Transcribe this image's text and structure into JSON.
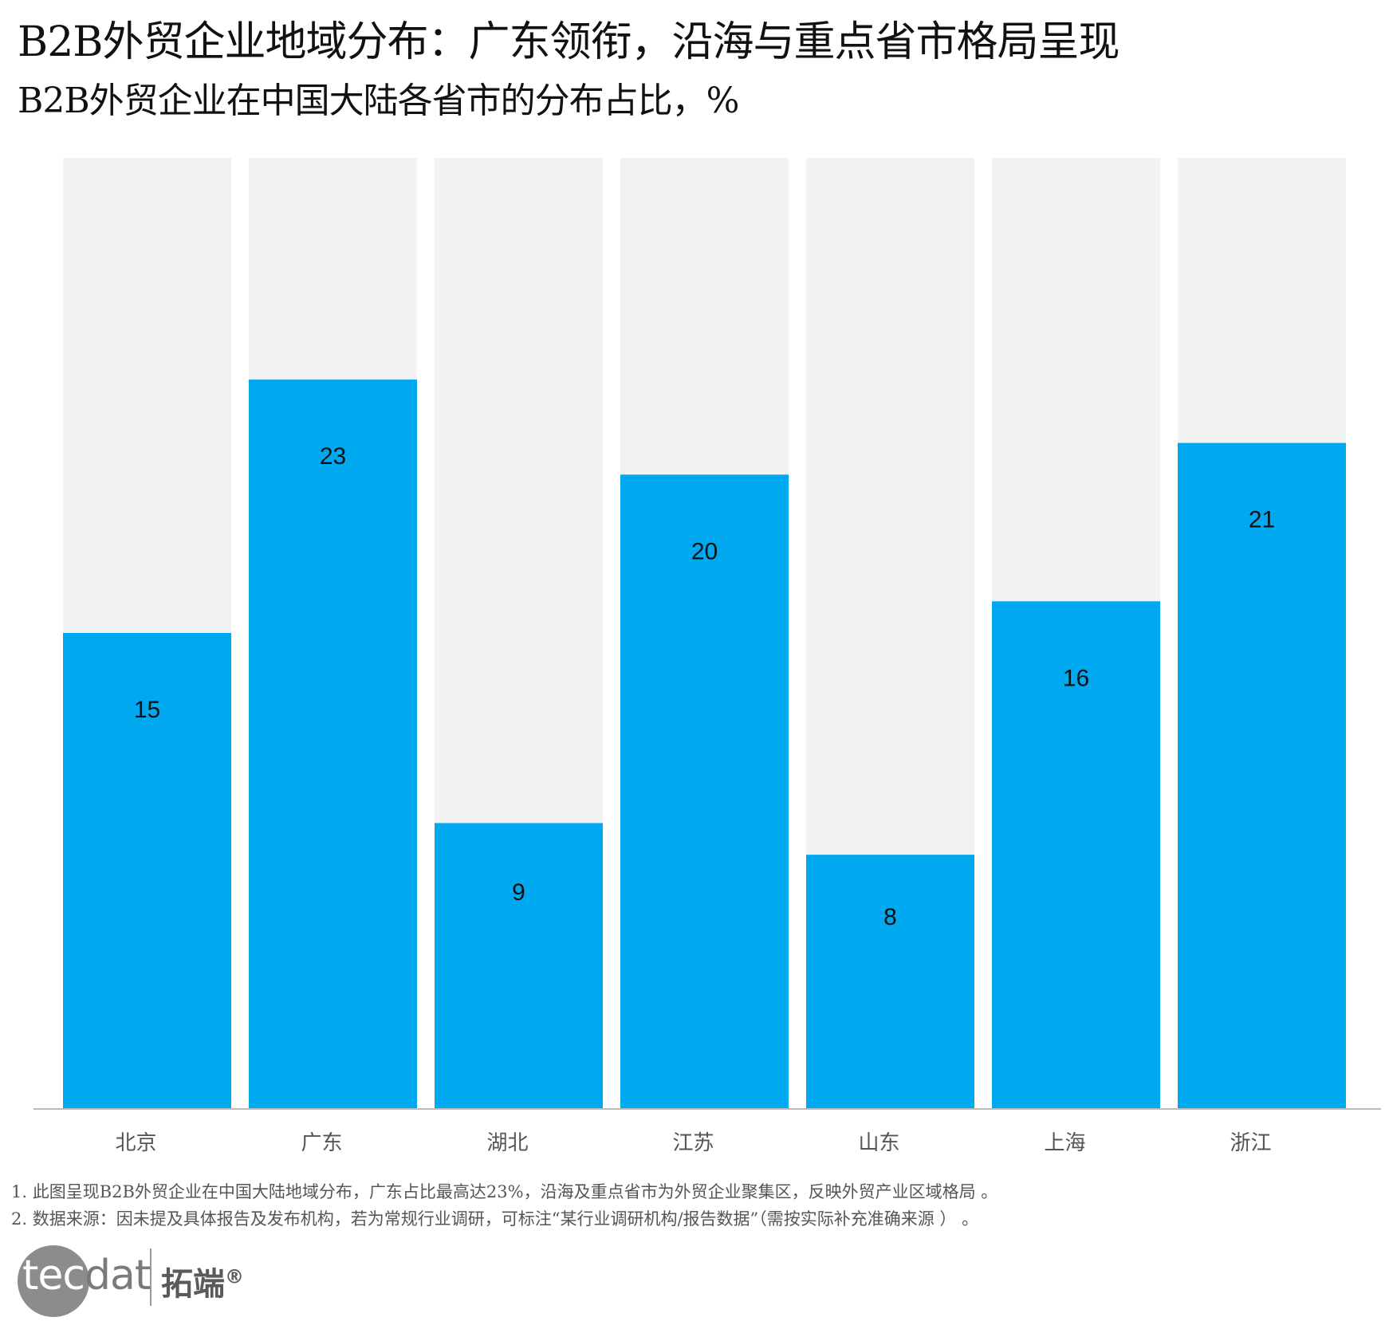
{
  "title": "B2B外贸企业地域分布：广东领衔，沿海与重点省市格局呈现",
  "subtitle": "B2B外贸企业在中国大陆各省市的分布占比，%",
  "chart_data": {
    "type": "bar",
    "categories": [
      "北京",
      "广东",
      "湖北",
      "江苏",
      "山东",
      "上海",
      "浙江"
    ],
    "values": [
      15,
      23,
      9,
      20,
      8,
      16,
      21
    ],
    "ylim": [
      0,
      30
    ],
    "bar_color": "#00a8f0",
    "background_bar_color": "#f2f2f2",
    "grid": false,
    "data_labels": true
  },
  "notes": [
    "1. 此图呈现B2B外贸企业在中国大陆地域分布，广东占比最高达23%，沿海及重点省市为外贸企业聚集区，反映外贸产业区域格局 。",
    "2. 数据来源：因未提及具体报告及发布机构，若为常规行业调研，可标注“某行业调研机构/报告数据”（需按实际补充准确来源 ） 。"
  ],
  "logo": {
    "brand_latin_a": "tec",
    "brand_latin_b": "dat",
    "brand_cn": "拓端",
    "reg": "®"
  }
}
